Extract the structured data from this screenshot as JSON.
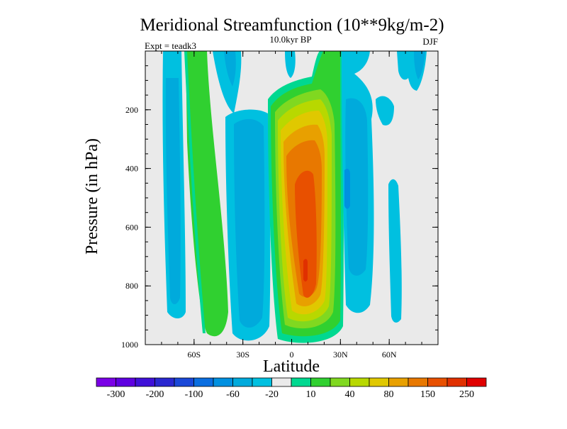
{
  "chart_data": {
    "type": "contour",
    "title": "Meridional Streamfunction (10**9kg/m-2)",
    "subtitle": "10.0kyr BP",
    "left_note": "Expt = teadk3",
    "right_note": "DJF",
    "xlabel": "Latitude",
    "ylabel": "Pressure (in hPa)",
    "xlim": [
      -90,
      90
    ],
    "ylim": [
      1000,
      0
    ],
    "x_ticks": [
      {
        "value": -60,
        "label": "60S"
      },
      {
        "value": -30,
        "label": "30S"
      },
      {
        "value": 0,
        "label": "0"
      },
      {
        "value": 30,
        "label": "30N"
      },
      {
        "value": 60,
        "label": "60N"
      }
    ],
    "y_ticks": [
      {
        "value": 200,
        "label": "200"
      },
      {
        "value": 400,
        "label": "400"
      },
      {
        "value": 600,
        "label": "600"
      },
      {
        "value": 800,
        "label": "800"
      },
      {
        "value": 1000,
        "label": "1000"
      }
    ],
    "colorbar": {
      "colors": [
        "#7a00e6",
        "#5e00e0",
        "#3f10d8",
        "#2a28d0",
        "#1a48d8",
        "#0a6ee0",
        "#0090e0",
        "#00aadc",
        "#00c0e0",
        "#eaeaea",
        "#00d890",
        "#30d030",
        "#80d820",
        "#b8d800",
        "#e0c800",
        "#e8a000",
        "#e87800",
        "#e85000",
        "#e03000",
        "#e00000"
      ],
      "labels": [
        "-300",
        "-200",
        "-100",
        "-60",
        "-20",
        "10",
        "40",
        "80",
        "150",
        "250"
      ]
    },
    "features": [
      {
        "name": "sh-cell-negative-far",
        "lat_range": [
          -80,
          -72
        ],
        "p_range": [
          0,
          960
        ],
        "value": -40
      },
      {
        "name": "sh-cell-positive",
        "lat_range": [
          -72,
          -56
        ],
        "p_range": [
          0,
          980
        ],
        "value": 30
      },
      {
        "name": "sh-cell-negative",
        "lat_range": [
          -40,
          -22
        ],
        "p_range": [
          280,
          980
        ],
        "value": -40
      },
      {
        "name": "hadley-cell-core",
        "lat_range": [
          -5,
          15
        ],
        "p_range": [
          280,
          920
        ],
        "value": 300
      },
      {
        "name": "nh-cell-negative",
        "lat_range": [
          30,
          50
        ],
        "p_range": [
          80,
          940
        ],
        "value": -60
      },
      {
        "name": "nh-polar-negative",
        "lat_range": [
          62,
          82
        ],
        "p_range": [
          0,
          230
        ],
        "value": -30
      }
    ]
  }
}
